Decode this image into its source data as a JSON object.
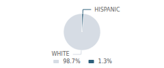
{
  "chart_data": {
    "type": "pie",
    "categories": [
      "WHITE",
      "HISPANIC"
    ],
    "values": [
      98.7,
      1.3
    ],
    "value_labels": [
      "98.7%",
      "1.3%"
    ],
    "colors": [
      "#d6dce4",
      "#2e5f7a"
    ],
    "legend": "bottom"
  }
}
